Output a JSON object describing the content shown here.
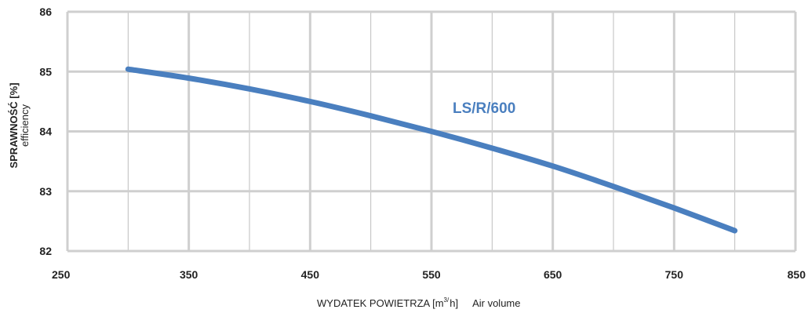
{
  "chart_data": {
    "type": "line",
    "title": "",
    "xlabel": {
      "main": "WYDATEK POWIETRZA [m",
      "sup": "3",
      "slash": "/",
      "end": "h]",
      "secondary": "Air volume"
    },
    "ylabel": {
      "main": "SPRAWNOŚĆ [%]",
      "secondary": "efficiency"
    },
    "xlim": [
      250,
      850
    ],
    "ylim": [
      82,
      86
    ],
    "x_ticks": [
      250,
      350,
      450,
      550,
      650,
      750,
      850
    ],
    "y_ticks": [
      82,
      83,
      84,
      85,
      86
    ],
    "x_minor_grid": [
      300,
      400,
      500,
      600,
      700,
      800
    ],
    "grid": true,
    "series": [
      {
        "name": "LS/R/600",
        "color": "#4a7fbf",
        "x": [
          300,
          350,
          400,
          450,
          500,
          550,
          600,
          650,
          700,
          750,
          800
        ],
        "y": [
          85.04,
          84.89,
          84.71,
          84.5,
          84.26,
          84.0,
          83.72,
          83.42,
          83.08,
          82.72,
          82.34
        ]
      }
    ]
  },
  "colors": {
    "major_grid": "#cfcfcf",
    "minor_grid": "#bdbdbd",
    "line": "#4a7fbf",
    "text": "#222222"
  }
}
